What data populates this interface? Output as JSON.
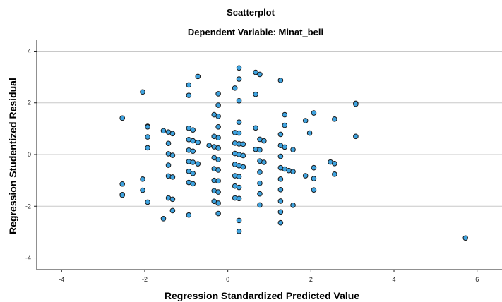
{
  "chart_data": {
    "type": "scatter",
    "title": "Scatterplot",
    "subtitle": "Dependent Variable: Minat_beli",
    "xlabel": "Regression Standardized Predicted Value",
    "ylabel": "Regression Studentized Residual",
    "xlim": [
      -4.6,
      6.6
    ],
    "ylim": [
      -4.45,
      4.45
    ],
    "xticks": [
      -4,
      -2,
      0,
      2,
      4,
      6
    ],
    "yticks": [
      -4,
      -2,
      0,
      2,
      4
    ],
    "grid": "horizontal",
    "colors": {
      "marker_fill": "#3ea3e0",
      "marker_edge": "#1a1a1a",
      "gridline": "#c8c8c8",
      "axis": "#222222"
    },
    "points": [
      [
        -2.54,
        1.41
      ],
      [
        -2.54,
        -1.14
      ],
      [
        -2.54,
        -1.55
      ],
      [
        -2.54,
        -1.57
      ],
      [
        -2.05,
        2.42
      ],
      [
        -2.05,
        -0.95
      ],
      [
        -2.05,
        -1.38
      ],
      [
        -1.93,
        1.09
      ],
      [
        -1.93,
        1.07
      ],
      [
        -1.93,
        0.68
      ],
      [
        -1.93,
        0.26
      ],
      [
        -1.93,
        -1.84
      ],
      [
        -1.55,
        0.92
      ],
      [
        -1.55,
        -2.48
      ],
      [
        -1.43,
        0.87
      ],
      [
        -1.43,
        0.43
      ],
      [
        -1.43,
        0.03
      ],
      [
        -1.43,
        -0.41
      ],
      [
        -1.43,
        -0.83
      ],
      [
        -1.43,
        -1.68
      ],
      [
        -1.33,
        0.81
      ],
      [
        -1.33,
        -0.03
      ],
      [
        -1.33,
        -0.87
      ],
      [
        -1.33,
        -1.73
      ],
      [
        -1.33,
        -2.17
      ],
      [
        -0.94,
        2.69
      ],
      [
        -0.94,
        2.29
      ],
      [
        -0.94,
        1.02
      ],
      [
        -0.94,
        0.58
      ],
      [
        -0.94,
        0.17
      ],
      [
        -0.94,
        -0.27
      ],
      [
        -0.94,
        -0.65
      ],
      [
        -0.94,
        -1.08
      ],
      [
        -0.94,
        -2.34
      ],
      [
        -0.84,
        0.95
      ],
      [
        -0.84,
        0.53
      ],
      [
        -0.84,
        0.13
      ],
      [
        -0.84,
        -0.3
      ],
      [
        -0.84,
        -0.73
      ],
      [
        -0.84,
        -1.13
      ],
      [
        -0.72,
        3.02
      ],
      [
        -0.72,
        0.47
      ],
      [
        -0.72,
        -0.36
      ],
      [
        -0.45,
        0.35
      ],
      [
        -0.33,
        1.54
      ],
      [
        -0.33,
        0.7
      ],
      [
        -0.33,
        0.3
      ],
      [
        -0.33,
        -0.12
      ],
      [
        -0.33,
        -0.55
      ],
      [
        -0.33,
        -1.0
      ],
      [
        -0.33,
        -1.4
      ],
      [
        -0.33,
        -1.81
      ],
      [
        -0.23,
        2.35
      ],
      [
        -0.23,
        1.91
      ],
      [
        -0.23,
        1.48
      ],
      [
        -0.23,
        1.07
      ],
      [
        -0.23,
        0.65
      ],
      [
        -0.23,
        0.25
      ],
      [
        -0.23,
        -0.19
      ],
      [
        -0.23,
        -0.6
      ],
      [
        -0.23,
        -1.02
      ],
      [
        -0.23,
        -1.45
      ],
      [
        -0.23,
        -1.88
      ],
      [
        -0.23,
        -2.28
      ],
      [
        0.17,
        2.57
      ],
      [
        0.17,
        0.85
      ],
      [
        0.17,
        0.44
      ],
      [
        0.17,
        0.04
      ],
      [
        0.17,
        -0.38
      ],
      [
        0.17,
        -0.82
      ],
      [
        0.17,
        -1.22
      ],
      [
        0.17,
        -1.68
      ],
      [
        0.27,
        3.35
      ],
      [
        0.27,
        2.92
      ],
      [
        0.27,
        2.08
      ],
      [
        0.27,
        1.25
      ],
      [
        0.27,
        0.83
      ],
      [
        0.27,
        0.41
      ],
      [
        0.27,
        0.0
      ],
      [
        0.27,
        -0.43
      ],
      [
        0.27,
        -0.85
      ],
      [
        0.27,
        -1.27
      ],
      [
        0.27,
        -1.7
      ],
      [
        0.27,
        -2.55
      ],
      [
        0.27,
        -2.97
      ],
      [
        0.37,
        0.4
      ],
      [
        0.37,
        -0.04
      ],
      [
        0.37,
        -0.48
      ],
      [
        0.67,
        3.18
      ],
      [
        0.67,
        2.33
      ],
      [
        0.67,
        1.03
      ],
      [
        0.67,
        0.2
      ],
      [
        0.77,
        3.1
      ],
      [
        0.77,
        0.59
      ],
      [
        0.77,
        0.18
      ],
      [
        0.77,
        -0.25
      ],
      [
        0.77,
        -0.68
      ],
      [
        0.77,
        -1.11
      ],
      [
        0.77,
        -1.52
      ],
      [
        0.77,
        -1.95
      ],
      [
        0.87,
        0.53
      ],
      [
        0.87,
        -0.3
      ],
      [
        1.27,
        2.87
      ],
      [
        1.27,
        0.78
      ],
      [
        1.27,
        0.35
      ],
      [
        1.27,
        -0.07
      ],
      [
        1.27,
        -0.51
      ],
      [
        1.27,
        -0.95
      ],
      [
        1.27,
        -1.36
      ],
      [
        1.27,
        -1.8
      ],
      [
        1.27,
        -2.22
      ],
      [
        1.27,
        -2.64
      ],
      [
        1.37,
        1.54
      ],
      [
        1.37,
        1.13
      ],
      [
        1.37,
        0.29
      ],
      [
        1.37,
        -0.56
      ],
      [
        1.47,
        -0.62
      ],
      [
        1.57,
        0.19
      ],
      [
        1.57,
        -0.66
      ],
      [
        1.57,
        -1.96
      ],
      [
        1.87,
        1.31
      ],
      [
        1.87,
        -0.82
      ],
      [
        1.97,
        0.83
      ],
      [
        2.07,
        1.61
      ],
      [
        2.07,
        -0.51
      ],
      [
        2.07,
        -0.93
      ],
      [
        2.07,
        -1.37
      ],
      [
        2.47,
        -0.29
      ],
      [
        2.57,
        1.37
      ],
      [
        2.57,
        -0.35
      ],
      [
        2.57,
        -0.76
      ],
      [
        3.08,
        1.98
      ],
      [
        3.08,
        1.95
      ],
      [
        3.08,
        0.7
      ],
      [
        5.72,
        -3.23
      ]
    ]
  }
}
